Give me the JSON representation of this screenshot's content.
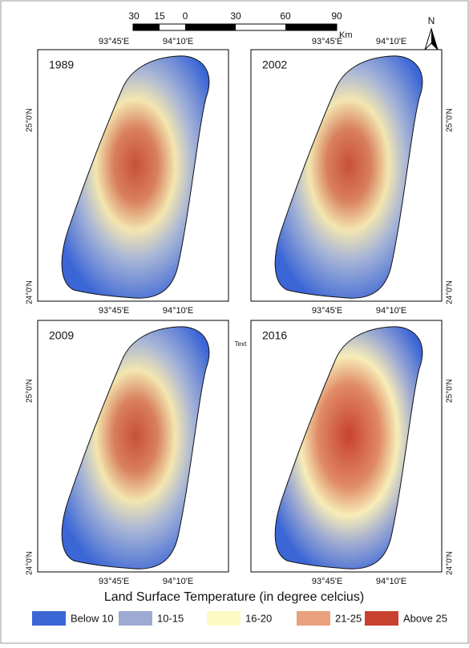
{
  "scale_bar": {
    "labels": [
      "30",
      "15",
      "0",
      "30",
      "60",
      "90"
    ],
    "unit": "Km"
  },
  "north": "N",
  "panels": [
    {
      "title": "1989",
      "x_labels_top": [
        "93°45'E",
        "94°10'E"
      ],
      "x_labels_bottom": [
        "93°45'E",
        "94°10'E"
      ],
      "y_labels": [
        "25°0'N",
        "24°0'N"
      ]
    },
    {
      "title": "2002",
      "x_labels_top": [
        "93°45'E",
        "94°10'E"
      ],
      "x_labels_bottom": [
        "93°45'E",
        "94°10'E"
      ],
      "y_labels": [
        "25°0'N",
        "24°0'N"
      ]
    },
    {
      "title": "2009",
      "x_labels_bottom": [
        "93°45'E",
        "94°10'E"
      ],
      "y_labels": [
        "25°0'N",
        "24°0'N"
      ]
    },
    {
      "title": "2016",
      "x_labels_bottom": [
        "93°45'E",
        "94°10'E"
      ],
      "y_labels": [
        "25°0'N",
        "24°0'N"
      ]
    }
  ],
  "stray_text": "Text",
  "legend": {
    "title": "Land Surface Temperature (in degree celcius)",
    "items": [
      {
        "label": "Below 10",
        "color": "#3b66d6"
      },
      {
        "label": "10-15",
        "color": "#9eaad2"
      },
      {
        "label": "16-20",
        "color": "#fdfbc2"
      },
      {
        "label": "21-25",
        "color": "#e9a07c"
      },
      {
        "label": "Above 25",
        "color": "#c8412f"
      }
    ]
  }
}
